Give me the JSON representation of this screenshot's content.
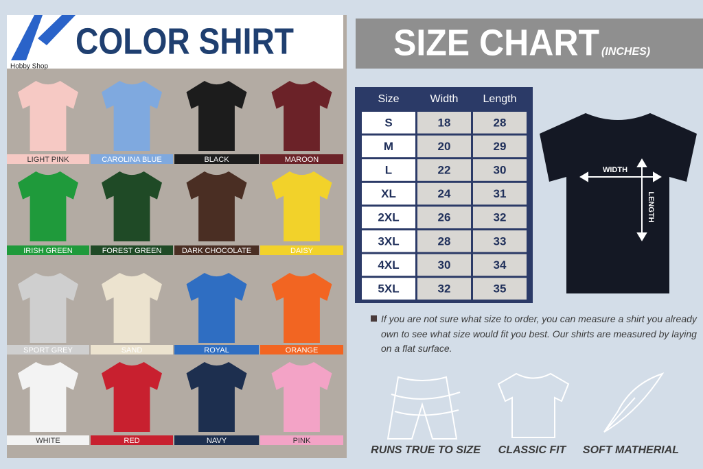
{
  "header": {
    "brand": "COLOR SHIRT",
    "shop": "Hobby Shop"
  },
  "colors": [
    "LIGHT PINK",
    "CAROLINA BLUE",
    "BLACK",
    "MAROON",
    "IRISH GREEN",
    "FOREST GREEN",
    "DARK CHOCOLATE",
    "DAISY",
    "SPORT GREY",
    "SAND",
    "ROYAL",
    "ORANGE",
    "WHITE",
    "RED",
    "NAVY",
    "PINK"
  ],
  "size_chart": {
    "title": "SIZE CHART",
    "unit": "(INCHES)",
    "columns": [
      "Size",
      "Width",
      "Length"
    ],
    "rows": [
      [
        "S",
        18,
        28
      ],
      [
        "M",
        20,
        29
      ],
      [
        "L",
        22,
        30
      ],
      [
        "XL",
        24,
        31
      ],
      [
        "2XL",
        26,
        32
      ],
      [
        "3XL",
        28,
        33
      ],
      [
        "4XL",
        30,
        34
      ],
      [
        "5XL",
        32,
        35
      ]
    ]
  },
  "diagram": {
    "width": "WIDTH",
    "length": "LENGTH"
  },
  "note": "If you are not sure what size to order, you can measure a shirt you already own to see what size would fit you best. Our shirts are measured by laying on a flat surface.",
  "features": [
    "RUNS TRUE TO SIZE",
    "CLASSIC FIT",
    "SOFT MATHERIAL"
  ]
}
